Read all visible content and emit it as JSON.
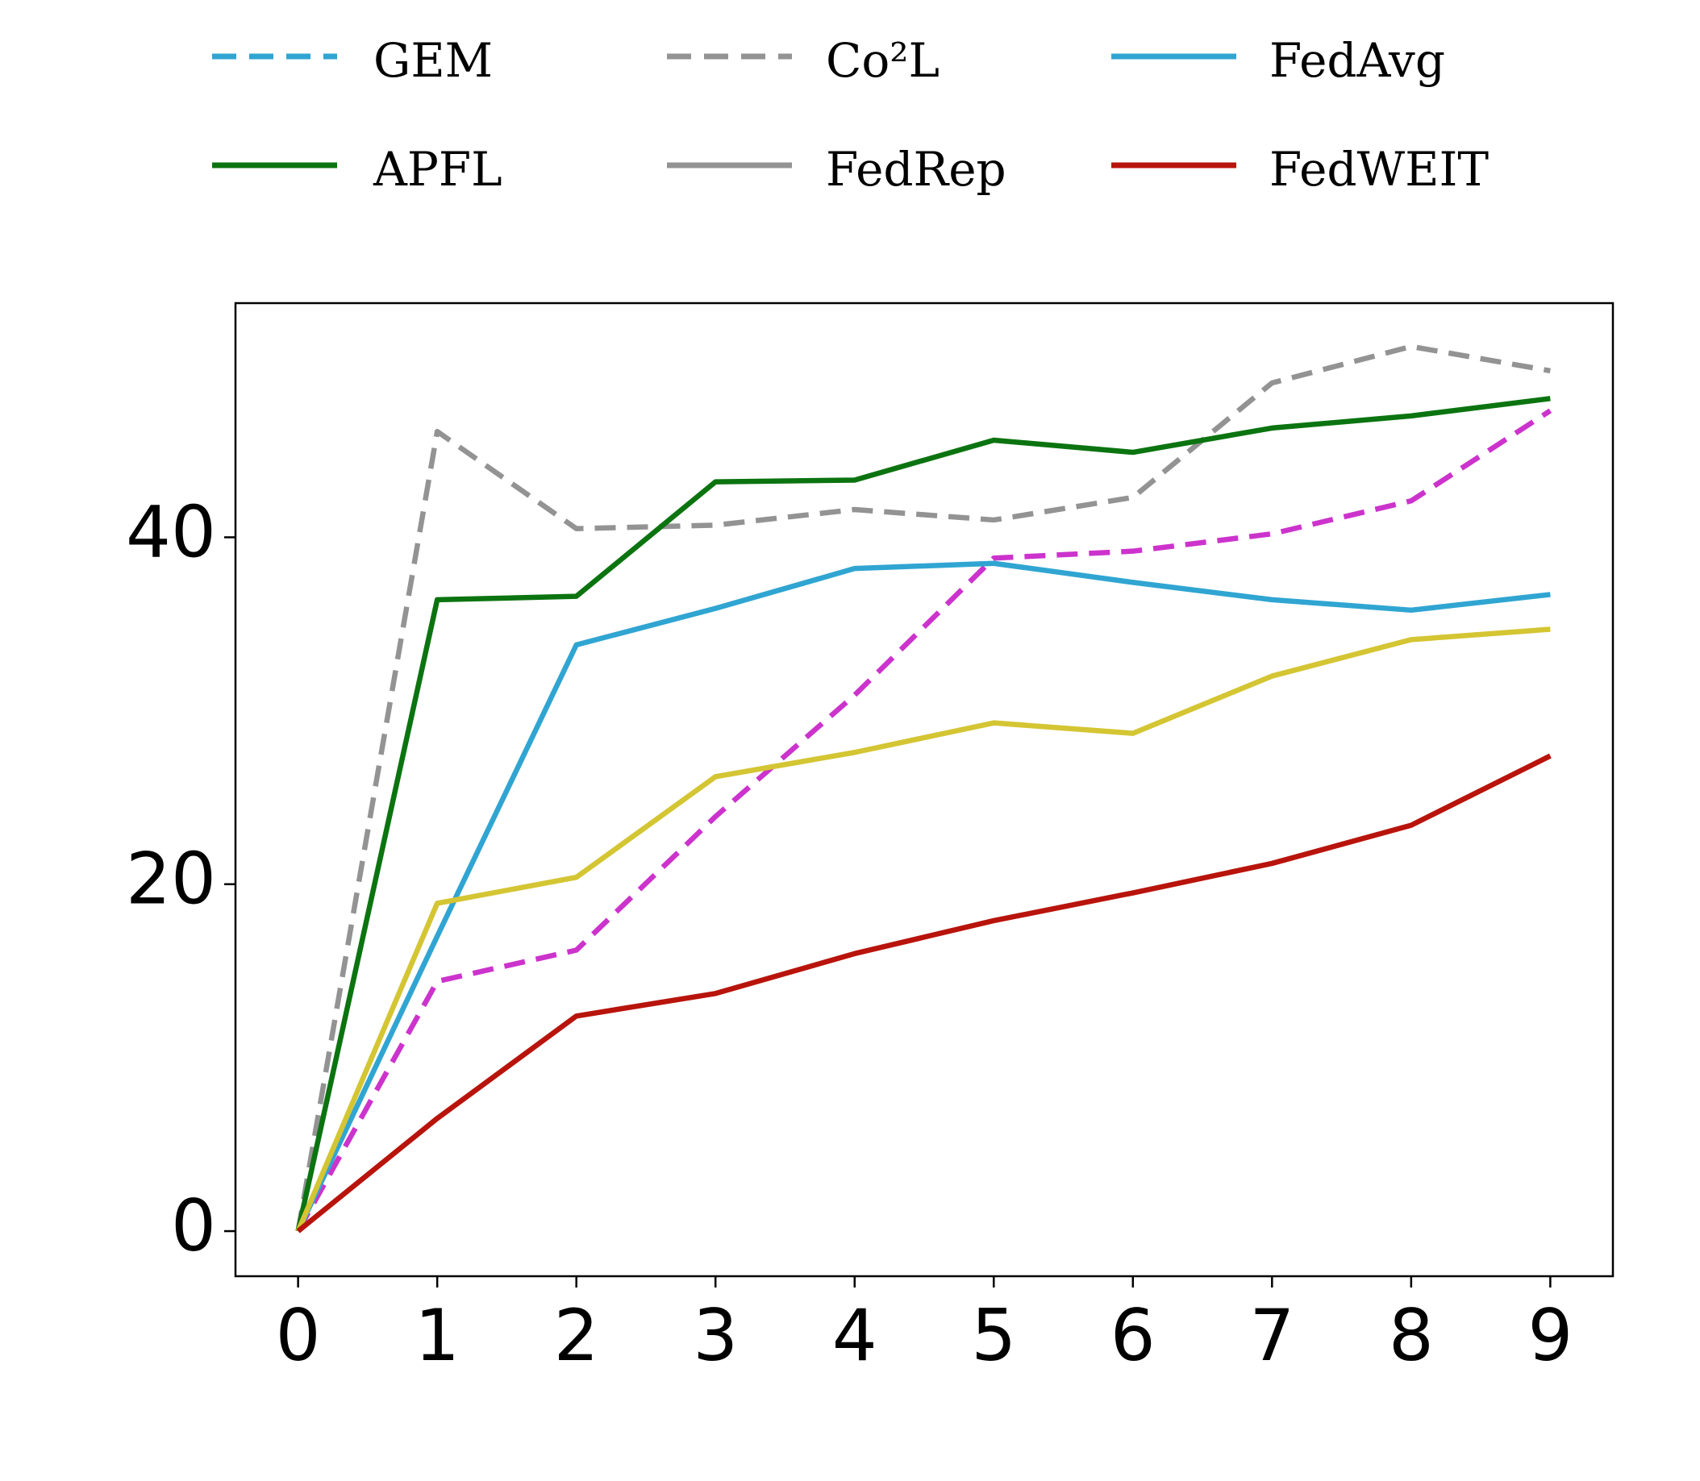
{
  "chart_data": {
    "type": "line",
    "x": [
      0,
      1,
      2,
      3,
      4,
      5,
      6,
      7,
      8,
      9
    ],
    "xlim": [
      -0.45,
      9.45
    ],
    "xticks": [
      0,
      1,
      2,
      3,
      4,
      5,
      6,
      7,
      8,
      9
    ],
    "ylim": [
      -2.6,
      53.5
    ],
    "yticks": [
      0,
      20,
      40
    ],
    "grid": false,
    "legend": "top",
    "series": [
      {
        "name": "GEM",
        "color": "#cc33cc",
        "legend_color": "#30a5d2",
        "dashed": true,
        "values": [
          0,
          14.4,
          16.2,
          23.9,
          30.9,
          38.8,
          39.2,
          40.2,
          42.1,
          47.3
        ]
      },
      {
        "name": "Co²L",
        "color": "#939393",
        "dashed": true,
        "values": [
          0,
          46.1,
          40.5,
          40.7,
          41.6,
          41.0,
          42.3,
          48.9,
          51.0,
          49.6
        ]
      },
      {
        "name": "FedAvg",
        "color": "#30a5d2",
        "dashed": false,
        "values": [
          0,
          17.0,
          33.8,
          35.9,
          38.2,
          38.5,
          37.4,
          36.4,
          35.8,
          36.7
        ]
      },
      {
        "name": "APFL",
        "color": "#0b7410",
        "dashed": false,
        "values": [
          0,
          36.4,
          36.6,
          43.2,
          43.3,
          45.6,
          44.9,
          46.3,
          47.0,
          48.0
        ]
      },
      {
        "name": "FedRep",
        "color": "#d4c533",
        "legend_color": "#939393",
        "dashed": false,
        "values": [
          0,
          18.9,
          20.4,
          26.2,
          27.6,
          29.3,
          28.7,
          32.0,
          34.1,
          34.7
        ]
      },
      {
        "name": "FedWEIT",
        "color": "#b8140c",
        "dashed": false,
        "values": [
          0,
          6.5,
          12.4,
          13.7,
          16.0,
          17.9,
          19.5,
          21.2,
          23.4,
          27.4
        ]
      }
    ]
  }
}
